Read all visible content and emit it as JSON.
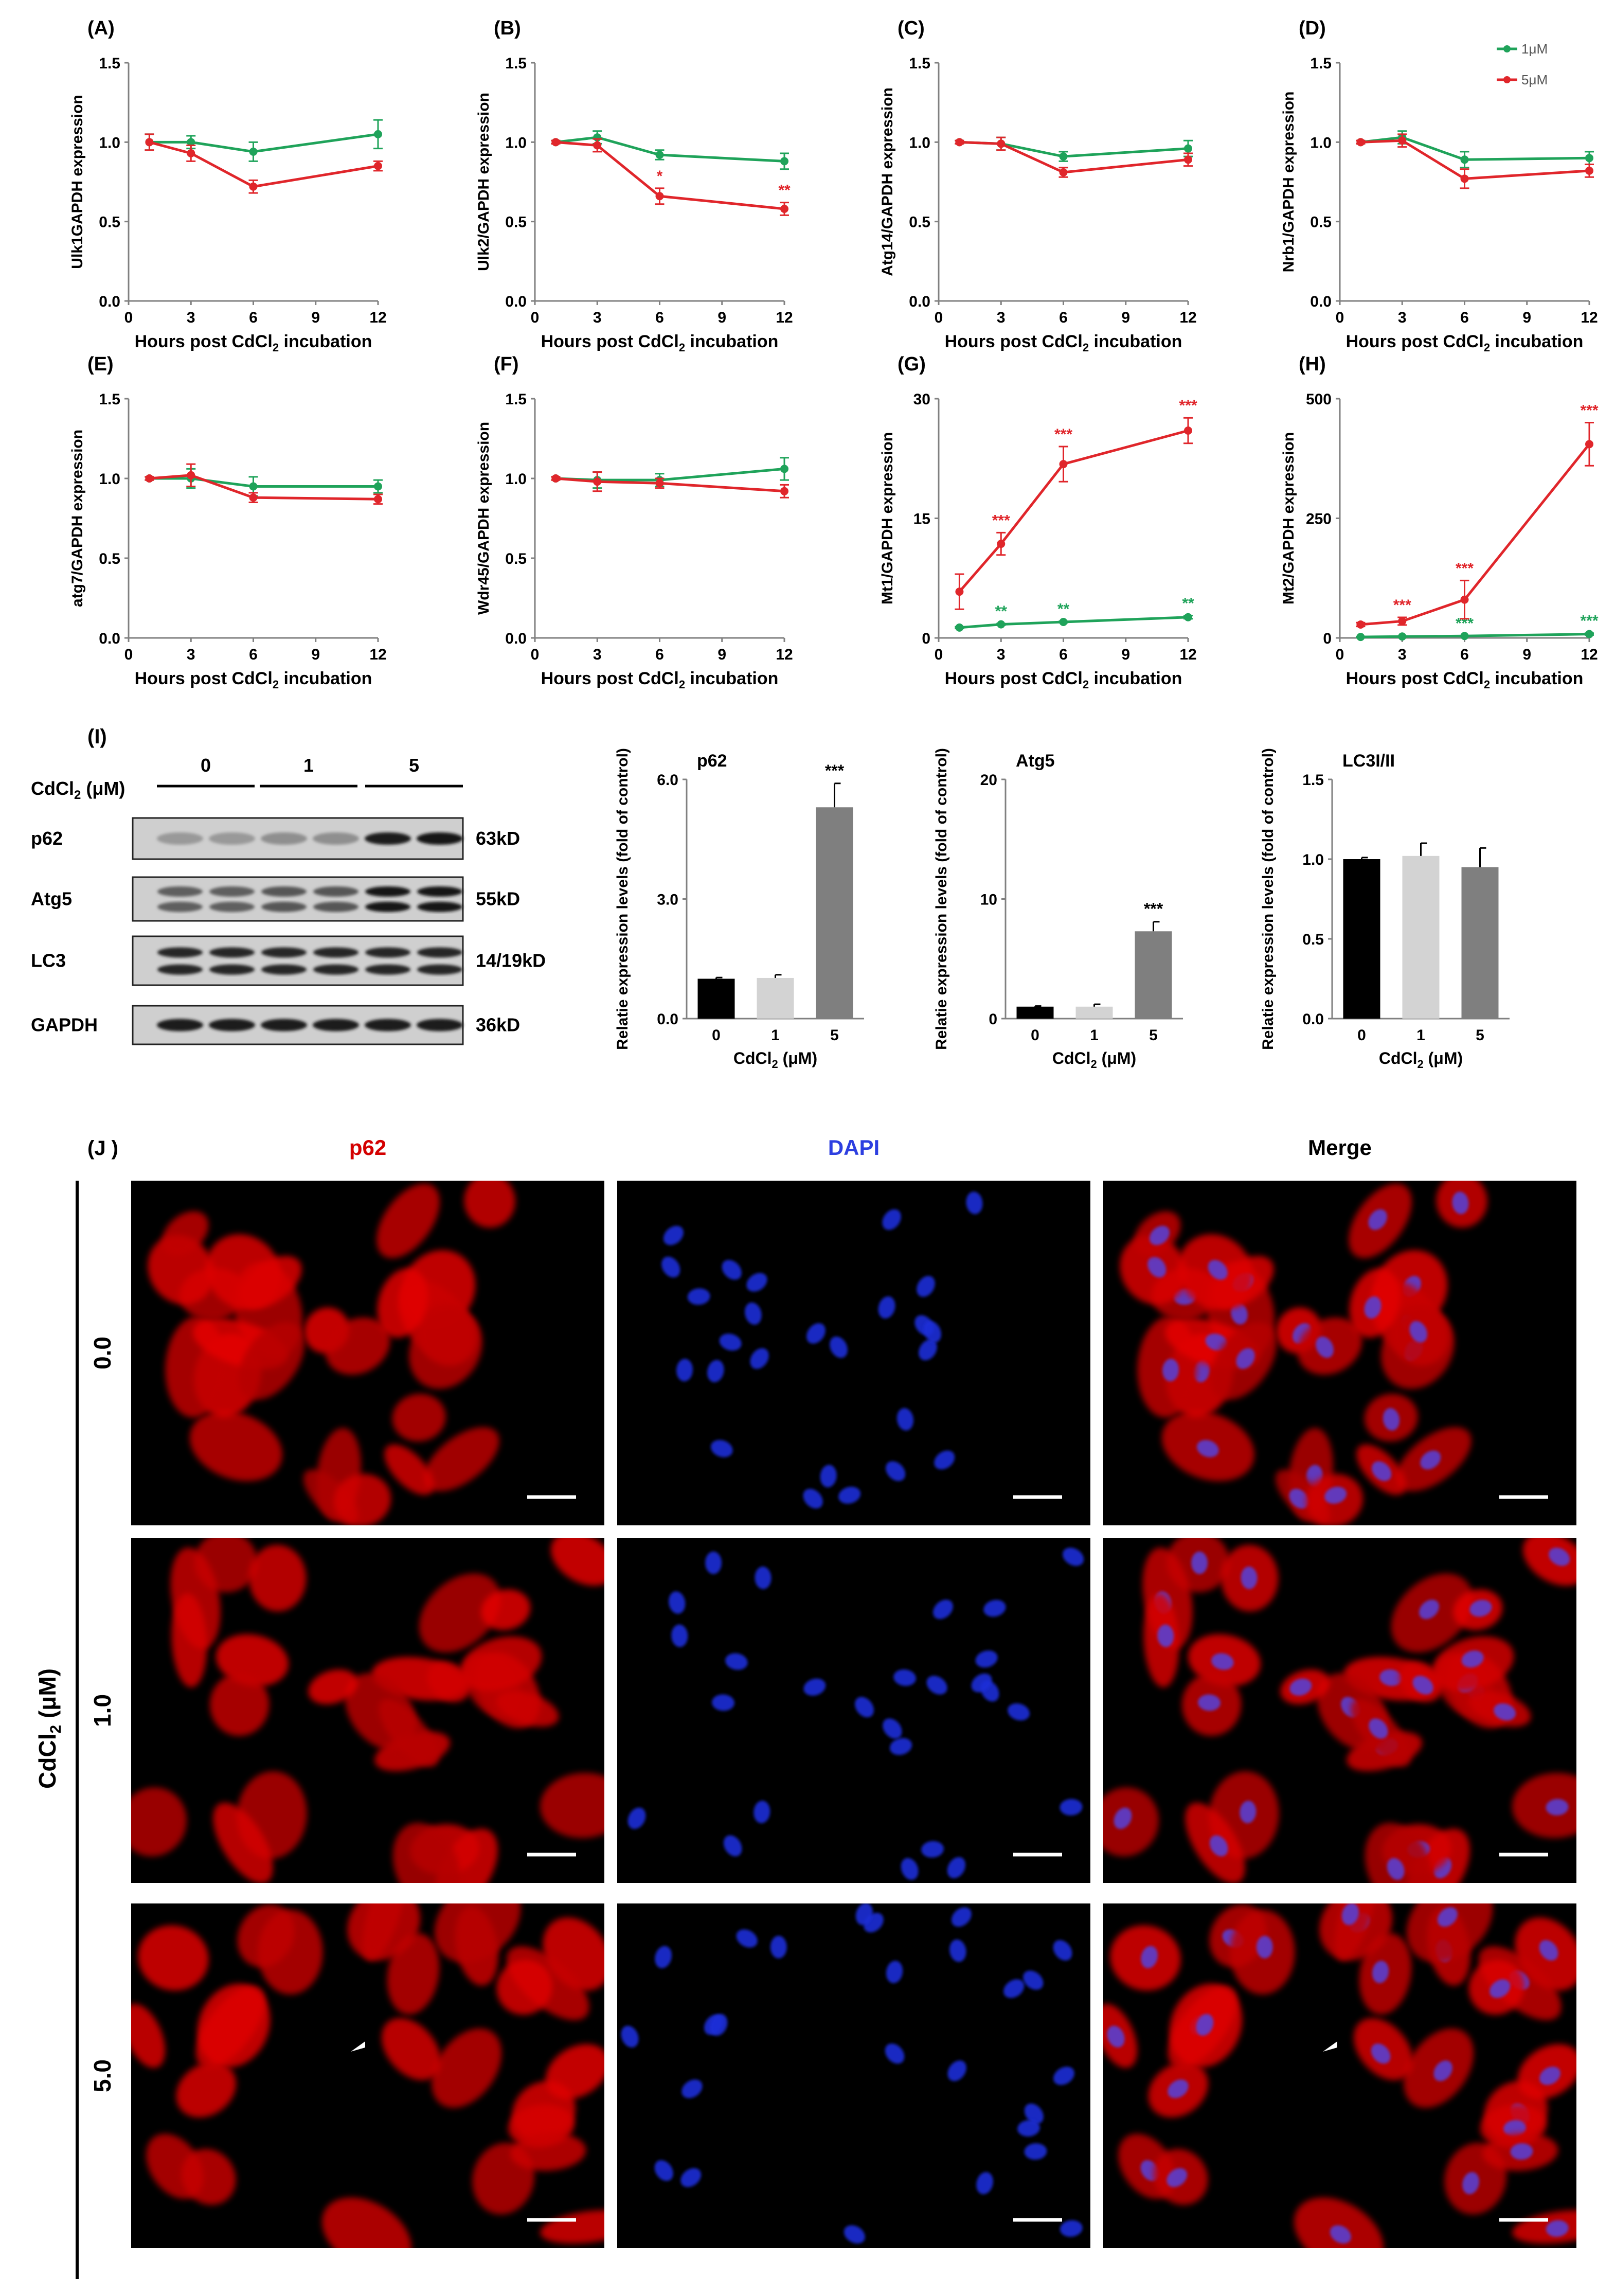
{
  "colors": {
    "series_1uM": "#1fa35a",
    "series_5uM": "#e0262b",
    "bar_0": "#000000",
    "bar_1": "#d3d3d3",
    "bar_5": "#7f7f7f",
    "p62_stain": "#d40000",
    "dapi_stain": "#2d3fe0",
    "axis": "#808080"
  },
  "legend": {
    "s1": "1μM",
    "s2": "5μM",
    "placement": "top-right"
  },
  "line_xlabel": "Hours post CdCl2 incubation",
  "line_xlabel_main": "Hours post CdCl",
  "line_xlabel_sub": "2",
  "line_xlabel_rest": " incubation",
  "chart_data": [
    {
      "panel": "(A)",
      "type": "line",
      "ylabel": "Ulk1GAPDH expression",
      "xlabel": "Hours post CdCl2 incubation",
      "x": [
        1,
        3,
        6,
        12
      ],
      "xticks": [
        0,
        3,
        6,
        9,
        12
      ],
      "xlim": [
        0,
        12
      ],
      "ylim": [
        0,
        1.5
      ],
      "yticks": [
        "0.0",
        "0.5",
        "1.0",
        "1.5"
      ],
      "series": [
        {
          "name": "1μM",
          "values": [
            1.0,
            1.0,
            0.94,
            1.05
          ],
          "err": [
            0.05,
            0.04,
            0.06,
            0.09
          ],
          "sig": [
            "",
            "",
            "",
            ""
          ]
        },
        {
          "name": "5μM",
          "values": [
            1.0,
            0.93,
            0.72,
            0.85
          ],
          "err": [
            0.05,
            0.05,
            0.04,
            0.03
          ],
          "sig": [
            "",
            "",
            "",
            ""
          ]
        }
      ]
    },
    {
      "panel": "(B)",
      "type": "line",
      "ylabel": "Ulk2/GAPDH expression",
      "xlabel": "Hours post CdCl2 incubation",
      "x": [
        1,
        3,
        6,
        12
      ],
      "xticks": [
        0,
        3,
        6,
        9,
        12
      ],
      "xlim": [
        0,
        12
      ],
      "ylim": [
        0,
        1.5
      ],
      "yticks": [
        "0.0",
        "0.5",
        "1.0",
        "1.5"
      ],
      "series": [
        {
          "name": "1μM",
          "values": [
            1.0,
            1.03,
            0.92,
            0.88
          ],
          "err": [
            0.01,
            0.04,
            0.03,
            0.05
          ],
          "sig": [
            "",
            "",
            "",
            ""
          ]
        },
        {
          "name": "5μM",
          "values": [
            1.0,
            0.98,
            0.66,
            0.58
          ],
          "err": [
            0.01,
            0.04,
            0.05,
            0.04
          ],
          "sig": [
            "",
            "",
            "*",
            "**"
          ]
        }
      ]
    },
    {
      "panel": "(C)",
      "type": "line",
      "ylabel": "Atg14/GAPDH expression",
      "xlabel": "Hours post CdCl2 incubation",
      "x": [
        1,
        3,
        6,
        12
      ],
      "xticks": [
        0,
        3,
        6,
        9,
        12
      ],
      "xlim": [
        0,
        12
      ],
      "ylim": [
        0,
        1.5
      ],
      "yticks": [
        "0.0",
        "0.5",
        "1.0",
        "1.5"
      ],
      "series": [
        {
          "name": "1μM",
          "values": [
            1.0,
            0.99,
            0.91,
            0.96
          ],
          "err": [
            0.01,
            0.04,
            0.03,
            0.05
          ],
          "sig": [
            "",
            "",
            "",
            ""
          ]
        },
        {
          "name": "5μM",
          "values": [
            1.0,
            0.99,
            0.81,
            0.89
          ],
          "err": [
            0.01,
            0.04,
            0.03,
            0.04
          ],
          "sig": [
            "",
            "",
            "",
            ""
          ]
        }
      ]
    },
    {
      "panel": "(D)",
      "type": "line",
      "ylabel": "Nrb1/GAPDH expression",
      "xlabel": "Hours post CdCl2 incubation",
      "x": [
        1,
        3,
        6,
        12
      ],
      "xticks": [
        0,
        3,
        6,
        9,
        12
      ],
      "xlim": [
        0,
        12
      ],
      "ylim": [
        0,
        1.5
      ],
      "yticks": [
        "0.0",
        "0.5",
        "1.0",
        "1.5"
      ],
      "series": [
        {
          "name": "1μM",
          "values": [
            1.0,
            1.03,
            0.89,
            0.9
          ],
          "err": [
            0.01,
            0.04,
            0.05,
            0.04
          ],
          "sig": [
            "",
            "",
            "",
            ""
          ]
        },
        {
          "name": "5μM",
          "values": [
            1.0,
            1.01,
            0.77,
            0.82
          ],
          "err": [
            0.01,
            0.04,
            0.06,
            0.04
          ],
          "sig": [
            "",
            "",
            "",
            ""
          ]
        }
      ]
    },
    {
      "panel": "(E)",
      "type": "line",
      "ylabel": "atg7/GAPDH expression",
      "xlabel": "Hours post CdCl2 incubation",
      "x": [
        1,
        3,
        6,
        12
      ],
      "xticks": [
        0,
        3,
        6,
        9,
        12
      ],
      "xlim": [
        0,
        12
      ],
      "ylim": [
        0,
        1.5
      ],
      "yticks": [
        "0.0",
        "0.5",
        "1.0",
        "1.5"
      ],
      "series": [
        {
          "name": "1μM",
          "values": [
            1.0,
            1.0,
            0.95,
            0.95
          ],
          "err": [
            0.01,
            0.06,
            0.06,
            0.04
          ],
          "sig": [
            "",
            "",
            "",
            ""
          ]
        },
        {
          "name": "5μM",
          "values": [
            1.0,
            1.02,
            0.88,
            0.87
          ],
          "err": [
            0.01,
            0.07,
            0.03,
            0.03
          ],
          "sig": [
            "",
            "",
            "",
            ""
          ]
        }
      ]
    },
    {
      "panel": "(F)",
      "type": "line",
      "ylabel": "Wdr45/GAPDH expression",
      "xlabel": "Hours post CdCl2 incubation",
      "x": [
        1,
        3,
        6,
        12
      ],
      "xticks": [
        0,
        3,
        6,
        9,
        12
      ],
      "xlim": [
        0,
        12
      ],
      "ylim": [
        0,
        1.5
      ],
      "yticks": [
        "0.0",
        "0.5",
        "1.0",
        "1.5"
      ],
      "series": [
        {
          "name": "1μM",
          "values": [
            1.0,
            0.99,
            0.99,
            1.06
          ],
          "err": [
            0.01,
            0.05,
            0.04,
            0.07
          ],
          "sig": [
            "",
            "",
            "",
            ""
          ]
        },
        {
          "name": "5μM",
          "values": [
            1.0,
            0.98,
            0.97,
            0.92
          ],
          "err": [
            0.01,
            0.06,
            0.03,
            0.04
          ],
          "sig": [
            "",
            "",
            "",
            ""
          ]
        }
      ]
    },
    {
      "panel": "(G)",
      "type": "line",
      "ylabel": "Mt1/GAPDH expression",
      "xlabel": "Hours post CdCl2 incubation",
      "x": [
        1,
        3,
        6,
        12
      ],
      "xticks": [
        0,
        3,
        6,
        9,
        12
      ],
      "xlim": [
        0,
        12
      ],
      "ylim": [
        0,
        30
      ],
      "yticks": [
        "0",
        "15",
        "30"
      ],
      "series": [
        {
          "name": "1μM",
          "values": [
            1.3,
            1.7,
            2.0,
            2.6
          ],
          "err": [
            0.1,
            0.1,
            0.1,
            0.2
          ],
          "sig": [
            "",
            "**",
            "**",
            "**"
          ]
        },
        {
          "name": "5μM",
          "values": [
            5.8,
            11.8,
            21.8,
            26.0
          ],
          "err": [
            2.2,
            1.4,
            2.2,
            1.6
          ],
          "sig": [
            "",
            "***",
            "***",
            "***"
          ]
        }
      ]
    },
    {
      "panel": "(H)",
      "type": "line",
      "ylabel": "Mt2/GAPDH expression",
      "xlabel": "Hours post CdCl2 incubation",
      "x": [
        1,
        3,
        6,
        12
      ],
      "xticks": [
        0,
        3,
        6,
        9,
        12
      ],
      "xlim": [
        0,
        12
      ],
      "ylim": [
        0,
        500
      ],
      "yticks": [
        "0",
        "250",
        "500"
      ],
      "series": [
        {
          "name": "1μM",
          "values": [
            2,
            3,
            4,
            8
          ],
          "err": [
            1,
            1,
            1,
            2
          ],
          "sig": [
            "",
            "",
            "***",
            "***"
          ]
        },
        {
          "name": "5μM",
          "values": [
            28,
            35,
            80,
            405
          ],
          "err": [
            4,
            8,
            40,
            45
          ],
          "sig": [
            "",
            "***",
            "***",
            "***"
          ]
        }
      ]
    },
    {
      "panel": "p62",
      "type": "bar",
      "title": "p62",
      "ylabel": "Relatie expression levels (fold of control)",
      "xlabel": "CdCl2 (μM)",
      "categories": [
        "0",
        "1",
        "5"
      ],
      "values": [
        1.0,
        1.02,
        5.3
      ],
      "err": [
        0.03,
        0.08,
        0.6
      ],
      "sig": [
        "",
        "",
        "***"
      ],
      "ylim": [
        0,
        6
      ],
      "yticks": [
        "0.0",
        "3.0",
        "6.0"
      ]
    },
    {
      "panel": "Atg5",
      "type": "bar",
      "title": "Atg5",
      "ylabel": "Relatie expression levels (fold of control)",
      "xlabel": "CdCl2 (μM)",
      "categories": [
        "0",
        "1",
        "5"
      ],
      "values": [
        1.0,
        1.0,
        7.3
      ],
      "err": [
        0.05,
        0.2,
        0.8
      ],
      "sig": [
        "",
        "",
        "***"
      ],
      "ylim": [
        0,
        20
      ],
      "yticks": [
        "0",
        "10",
        "20"
      ]
    },
    {
      "panel": "LC3I/II",
      "type": "bar",
      "title": "LC3I/II",
      "ylabel": "Relatie expression levels (fold of control)",
      "xlabel": "CdCl2 (μM)",
      "categories": [
        "0",
        "1",
        "5"
      ],
      "values": [
        1.0,
        1.02,
        0.95
      ],
      "err": [
        0.01,
        0.08,
        0.12
      ],
      "sig": [
        "",
        "",
        ""
      ],
      "ylim": [
        0,
        1.5
      ],
      "yticks": [
        "0.0",
        "0.5",
        "1.0",
        "1.5"
      ]
    }
  ],
  "bar_xlabel_main": "CdCl",
  "bar_xlabel_sub": "2",
  "bar_xlabel_rest_uM": " (μM)",
  "bar_xlabel_rest_italic": " (",
  "blot": {
    "panel": "(I)",
    "cdcl_main": "CdCl",
    "cdcl_sub": "2",
    "cdcl_rest": " (μM)",
    "groups": [
      "0",
      "1",
      "5"
    ],
    "rows": [
      {
        "label": "p62",
        "size": "63kD",
        "intensity": [
          0.25,
          0.25,
          0.3,
          0.3,
          0.9,
          0.95
        ]
      },
      {
        "label": "Atg5",
        "size": "55kD",
        "intensity": [
          0.55,
          0.55,
          0.6,
          0.6,
          0.95,
          0.95
        ]
      },
      {
        "label": "LC3",
        "size": "14/19kD",
        "intensity": [
          0.85,
          0.85,
          0.85,
          0.85,
          0.85,
          0.85
        ]
      },
      {
        "label": "GAPDH",
        "size": "36kD",
        "intensity": [
          0.9,
          0.9,
          0.9,
          0.9,
          0.9,
          0.9
        ]
      }
    ]
  },
  "micro": {
    "panel": "(J )",
    "columns": [
      "p62",
      "DAPI",
      "Merge"
    ],
    "rows": [
      "0.0",
      "1.0",
      "5.0"
    ],
    "side_main": "CdCl",
    "side_sub": "2",
    "side_rest": " (μM)"
  }
}
